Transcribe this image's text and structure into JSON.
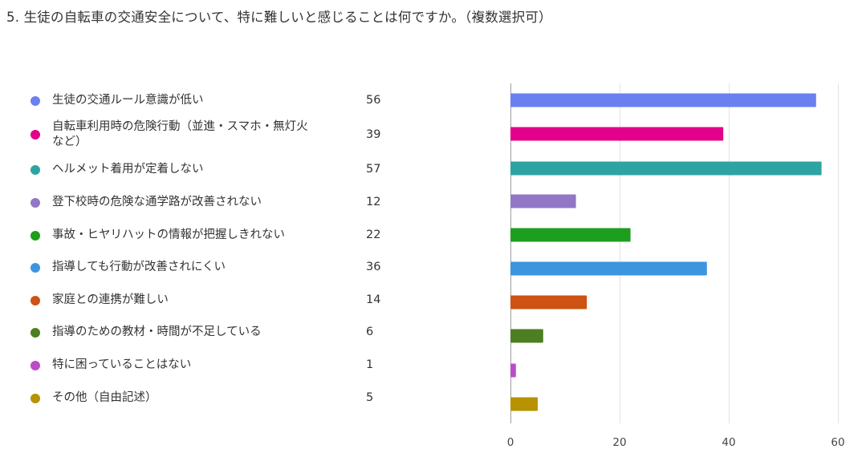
{
  "question": {
    "title": "5. 生徒の自転車の交通安全について、特に難しいと感じることは何ですか。（複数選択可）"
  },
  "chart_data": {
    "type": "bar",
    "orientation": "horizontal",
    "title": "",
    "xlabel": "",
    "ylabel": "",
    "xlim": [
      0,
      60
    ],
    "ticks": [
      0,
      20,
      40,
      60
    ],
    "grid": true,
    "legend_position": "left",
    "categories": [
      "生徒の交通ルール意識が低い",
      "自転車利用時の危険行動（並進・スマホ・無灯火など）",
      "ヘルメット着用が定着しない",
      "登下校時の危険な通学路が改善されない",
      "事故・ヒヤリハットの情報が把握しきれない",
      "指導しても行動が改善されにくい",
      "家庭との連携が難しい",
      "指導のための教材・時間が不足している",
      "特に困っていることはない",
      "その他（自由記述）"
    ],
    "values": [
      56,
      39,
      57,
      12,
      22,
      36,
      14,
      6,
      1,
      5
    ],
    "colors": [
      "#6a7ff0",
      "#e3008c",
      "#2ea3a3",
      "#9277c6",
      "#1e9e1e",
      "#3d95e0",
      "#cd5213",
      "#4e7e22",
      "#bb4cc6",
      "#b89200"
    ]
  }
}
